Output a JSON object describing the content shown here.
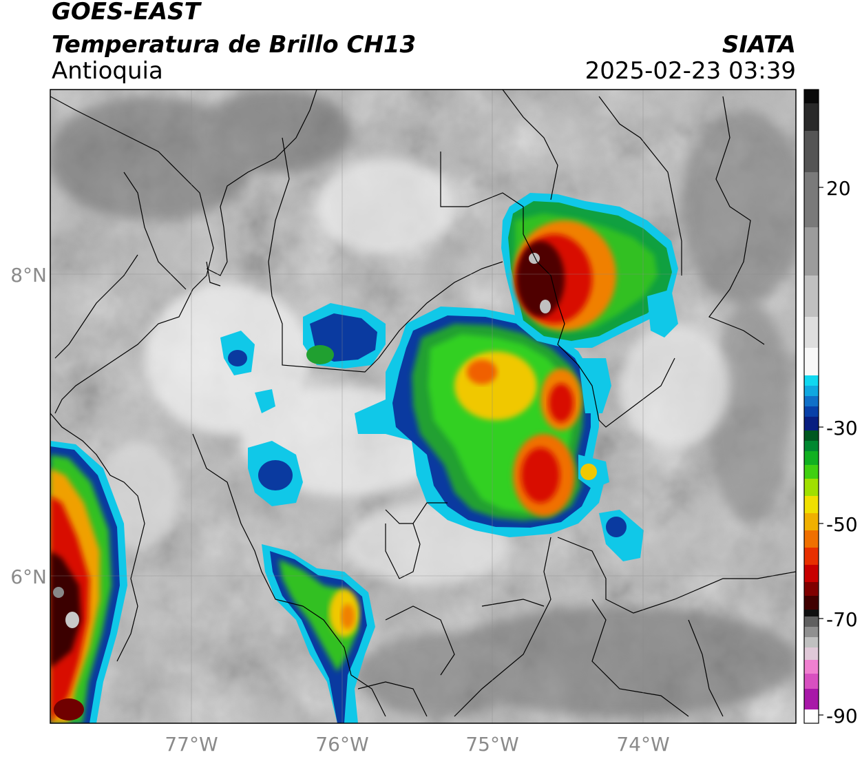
{
  "header": {
    "satellite": "GOES-EAST",
    "product": "Temperatura de Brillo CH13",
    "region": "Antioquia",
    "organization": "SIATA",
    "datetime": "2025-02-23 03:39"
  },
  "axes": {
    "lon_labels": [
      "77°W",
      "76°W",
      "75°W",
      "74°W"
    ],
    "lat_labels": [
      "8°N",
      "6°N"
    ]
  },
  "colorbar": {
    "ticks": [
      "20",
      "-30",
      "-50",
      "-70",
      "-90"
    ],
    "colors": {
      "black": "#0a0a0a",
      "gray": "#7a7a7a",
      "white": "#f0f0f0",
      "cyan": "#10c8e8",
      "blue": "#08208a",
      "green": "#10c020",
      "yellow": "#f0e000",
      "orange": "#f08000",
      "red": "#d00000",
      "darkred": "#400000",
      "pink": "#e060c0",
      "purple": "#a010a0"
    }
  }
}
